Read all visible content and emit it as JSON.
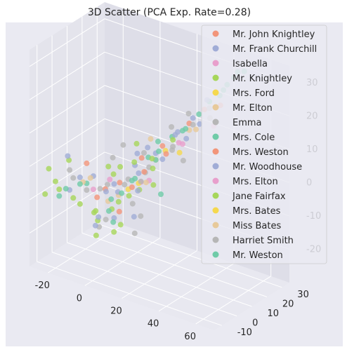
{
  "colors": {
    "figure_bg": "#ffffff",
    "axes_bg": "#eaeaf2",
    "pane_left": "#e4e4ec",
    "pane_right": "#dedee8",
    "pane_floor": "#e8e8f0",
    "grid": "#ffffff",
    "text": "#262626"
  },
  "chart_data": {
    "type": "scatter",
    "title": "3D Scatter (PCA Exp. Rate=0.28)",
    "projection": "3d",
    "xlabel": "",
    "ylabel": "",
    "zlabel": "",
    "xlim": [
      -30,
      70
    ],
    "ylim": [
      -15,
      35
    ],
    "zlim": [
      -30,
      35
    ],
    "xticks": [
      -20,
      0,
      20,
      40,
      60
    ],
    "yticks": [
      -10,
      0,
      10,
      20,
      30
    ],
    "zticks": [
      -20,
      -10,
      0,
      10,
      20,
      30
    ],
    "grid": true,
    "legend_position": "upper-right",
    "series": [
      {
        "name": "Mr. John Knightley",
        "color": "#f2957a",
        "points": [
          [
            5,
            2,
            -3
          ],
          [
            12,
            8,
            4
          ],
          [
            -8,
            -4,
            2
          ],
          [
            20,
            12,
            8
          ],
          [
            28,
            20,
            14
          ],
          [
            15,
            6,
            1
          ],
          [
            -2,
            1,
            -6
          ],
          [
            33,
            24,
            18
          ],
          [
            8,
            -2,
            -10
          ],
          [
            40,
            26,
            20
          ]
        ]
      },
      {
        "name": "Mr. Frank Churchill",
        "color": "#a0acd6",
        "points": [
          [
            2,
            2,
            -4
          ],
          [
            10,
            6,
            2
          ],
          [
            -10,
            -6,
            -2
          ],
          [
            18,
            10,
            6
          ],
          [
            25,
            16,
            12
          ],
          [
            6,
            -3,
            -12
          ],
          [
            -4,
            4,
            -8
          ],
          [
            14,
            3,
            -4
          ],
          [
            22,
            18,
            10
          ],
          [
            30,
            20,
            16
          ],
          [
            -15,
            -8,
            4
          ],
          [
            36,
            22,
            22
          ],
          [
            0,
            -8,
            -14
          ],
          [
            12,
            12,
            6
          ]
        ]
      },
      {
        "name": "Isabella",
        "color": "#e89fcc",
        "points": [
          [
            14,
            5,
            -2
          ],
          [
            38,
            24,
            14
          ],
          [
            -6,
            -2,
            -6
          ],
          [
            26,
            18,
            8
          ]
        ]
      },
      {
        "name": "Mr. Knightley",
        "color": "#a6d65a",
        "points": [
          [
            -20,
            -10,
            -4
          ],
          [
            -12,
            -8,
            -8
          ],
          [
            -4,
            -4,
            -12
          ],
          [
            4,
            -2,
            -10
          ],
          [
            10,
            2,
            -6
          ],
          [
            -16,
            -6,
            2
          ],
          [
            0,
            4,
            -2
          ],
          [
            8,
            8,
            2
          ],
          [
            16,
            10,
            4
          ],
          [
            -24,
            -12,
            -8
          ],
          [
            2,
            -10,
            -16
          ],
          [
            20,
            6,
            -2
          ],
          [
            -8,
            2,
            -14
          ],
          [
            12,
            -6,
            -12
          ],
          [
            24,
            14,
            10
          ],
          [
            6,
            12,
            6
          ]
        ]
      },
      {
        "name": "Mrs. Ford",
        "color": "#f5d84e",
        "points": [
          [
            8,
            4,
            -5
          ],
          [
            20,
            14,
            6
          ]
        ]
      },
      {
        "name": "Mr. Elton",
        "color": "#e7c99a",
        "points": [
          [
            6,
            0,
            -6
          ],
          [
            18,
            10,
            4
          ],
          [
            30,
            22,
            12
          ],
          [
            -6,
            -4,
            -2
          ],
          [
            12,
            14,
            8
          ]
        ]
      },
      {
        "name": "Emma",
        "color": "#b6b6b6",
        "points": [
          [
            0,
            0,
            -4
          ],
          [
            8,
            4,
            -2
          ],
          [
            16,
            8,
            2
          ],
          [
            24,
            14,
            8
          ],
          [
            -8,
            -4,
            -6
          ],
          [
            4,
            -6,
            -12
          ],
          [
            12,
            2,
            -8
          ],
          [
            20,
            18,
            12
          ],
          [
            -14,
            -8,
            0
          ],
          [
            28,
            16,
            4
          ],
          [
            -2,
            6,
            2
          ],
          [
            10,
            10,
            -4
          ],
          [
            34,
            26,
            18
          ],
          [
            18,
            -4,
            -14
          ],
          [
            2,
            8,
            6
          ],
          [
            26,
            22,
            16
          ]
        ]
      },
      {
        "name": "Mrs. Cole",
        "color": "#6fcba8",
        "points": [
          [
            14,
            10,
            4
          ],
          [
            22,
            16,
            10
          ],
          [
            30,
            24,
            16
          ],
          [
            38,
            28,
            22
          ],
          [
            44,
            30,
            28
          ],
          [
            -10,
            -6,
            -4
          ],
          [
            4,
            -4,
            -10
          ],
          [
            10,
            6,
            -2
          ],
          [
            18,
            12,
            6
          ],
          [
            26,
            20,
            12
          ],
          [
            34,
            26,
            20
          ],
          [
            42,
            28,
            26
          ],
          [
            48,
            32,
            30
          ],
          [
            -18,
            -10,
            -8
          ],
          [
            6,
            2,
            -6
          ]
        ]
      },
      {
        "name": "Mrs. Weston",
        "color": "#f2957a",
        "points": [
          [
            10,
            4,
            -4
          ],
          [
            -4,
            -2,
            -8
          ],
          [
            22,
            12,
            6
          ]
        ]
      },
      {
        "name": "Mr. Woodhouse",
        "color": "#a0acd6",
        "points": [
          [
            -6,
            -2,
            -2
          ],
          [
            4,
            2,
            -6
          ],
          [
            12,
            6,
            0
          ],
          [
            20,
            12,
            4
          ],
          [
            28,
            18,
            10
          ],
          [
            -14,
            -8,
            -6
          ],
          [
            0,
            -6,
            -12
          ],
          [
            8,
            10,
            4
          ],
          [
            16,
            -2,
            -10
          ],
          [
            32,
            22,
            14
          ]
        ]
      },
      {
        "name": "Mrs. Elton",
        "color": "#e89fcc",
        "points": [
          [
            16,
            8,
            -2
          ],
          [
            24,
            18,
            8
          ],
          [
            -2,
            4,
            -4
          ]
        ]
      },
      {
        "name": "Jane Fairfax",
        "color": "#a6d65a",
        "points": [
          [
            -18,
            -10,
            -6
          ],
          [
            -10,
            -6,
            -10
          ],
          [
            -2,
            -4,
            -14
          ],
          [
            6,
            0,
            -8
          ],
          [
            14,
            4,
            -4
          ],
          [
            -22,
            -12,
            0
          ],
          [
            2,
            6,
            0
          ],
          [
            10,
            -8,
            -14
          ],
          [
            18,
            8,
            2
          ],
          [
            -6,
            8,
            -2
          ]
        ]
      },
      {
        "name": "Mrs. Bates",
        "color": "#f5d84e",
        "points": [
          [
            12,
            6,
            -3
          ],
          [
            26,
            16,
            6
          ]
        ]
      },
      {
        "name": "Miss Bates",
        "color": "#e7c99a",
        "points": [
          [
            2,
            -2,
            -8
          ],
          [
            16,
            6,
            -2
          ],
          [
            28,
            20,
            12
          ],
          [
            -10,
            -4,
            -4
          ]
        ]
      },
      {
        "name": "Harriet Smith",
        "color": "#b6b6b6",
        "points": [
          [
            -4,
            0,
            -6
          ],
          [
            6,
            4,
            -4
          ],
          [
            14,
            8,
            0
          ],
          [
            22,
            16,
            6
          ],
          [
            -12,
            -8,
            -2
          ],
          [
            2,
            -8,
            -14
          ],
          [
            10,
            12,
            4
          ],
          [
            30,
            20,
            14
          ],
          [
            18,
            0,
            -10
          ],
          [
            36,
            24,
            16
          ]
        ]
      },
      {
        "name": "Mr. Weston",
        "color": "#6fcba8",
        "points": [
          [
            -8,
            -4,
            -4
          ],
          [
            2,
            0,
            -8
          ],
          [
            10,
            4,
            -2
          ],
          [
            18,
            10,
            4
          ],
          [
            26,
            18,
            12
          ],
          [
            34,
            26,
            20
          ],
          [
            40,
            28,
            24
          ],
          [
            -16,
            -8,
            -6
          ],
          [
            8,
            -6,
            -12
          ],
          [
            16,
            14,
            8
          ],
          [
            24,
            6,
            -4
          ],
          [
            46,
            30,
            30
          ]
        ]
      }
    ]
  }
}
